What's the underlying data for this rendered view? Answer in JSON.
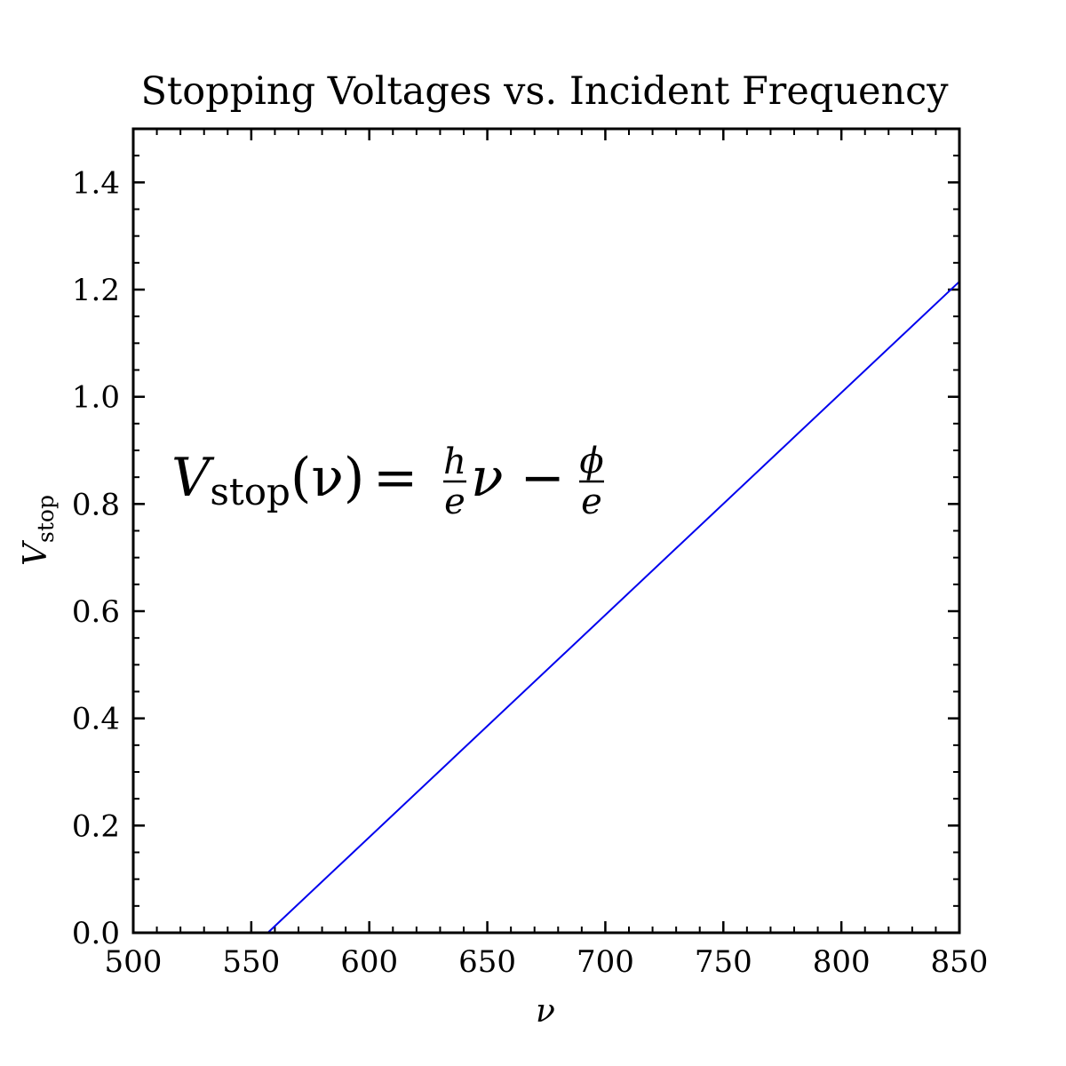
{
  "chart_data": {
    "type": "line",
    "title": "Stopping Voltages vs. Incident Frequency",
    "xlabel": "ν",
    "ylabel": {
      "main": "V",
      "sub": "stop"
    },
    "xlim": [
      500,
      850
    ],
    "ylim": [
      0.0,
      1.5
    ],
    "x_ticks": [
      500,
      550,
      600,
      650,
      700,
      750,
      800,
      850
    ],
    "x_tick_labels": [
      "500",
      "550",
      "600",
      "650",
      "700",
      "750",
      "800",
      "850"
    ],
    "y_ticks": [
      0.0,
      0.2,
      0.4,
      0.6,
      0.8,
      1.0,
      1.2,
      1.4
    ],
    "y_tick_labels": [
      "0.0",
      "0.2",
      "0.4",
      "0.6",
      "0.8",
      "1.0",
      "1.2",
      "1.4"
    ],
    "x_minor_step": 10,
    "y_minor_step": 0.05,
    "grid": false,
    "series": [
      {
        "color": "#0000ee",
        "x": [
          557,
          850
        ],
        "y": [
          0.0,
          1.215
        ]
      }
    ],
    "annotations": [
      {
        "parts": {
          "lhs_main": "V",
          "lhs_sub": "stop",
          "lhs_arg": "(ν)",
          "equals": "=",
          "frac1_num": "h",
          "frac1_den": "e",
          "mid": "ν −",
          "frac2_num": "ϕ",
          "frac2_den": "e"
        }
      }
    ]
  }
}
